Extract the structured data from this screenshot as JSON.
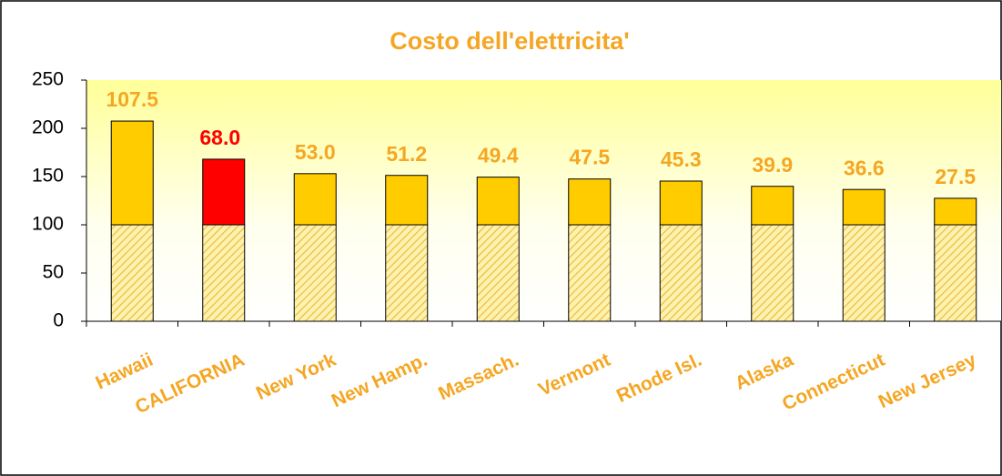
{
  "chart_data": {
    "type": "stacked_bar",
    "title": "Costo dell'elettricita'",
    "categories": [
      "Hawaii",
      "CALIFORNIA",
      "New York",
      "New Hamp.",
      "Massach.",
      "Vermont",
      "Rhode Isl.",
      "Alaska",
      "Connecticut",
      "New Jersey"
    ],
    "series": [
      {
        "color": "#ffe27a",
        "hatch": true,
        "values": [
          100,
          100,
          100,
          100,
          100,
          100,
          100,
          100,
          100,
          100
        ]
      },
      {
        "color": "#ffcc00",
        "colors": [
          "#ffcc00",
          "#ff0000",
          "#ffcc00",
          "#ffcc00",
          "#ffcc00",
          "#ffcc00",
          "#ffcc00",
          "#ffcc00",
          "#ffcc00",
          "#ffcc00"
        ],
        "label_colors": [
          "#f5a623",
          "#ff0000",
          "#f5a623",
          "#f5a623",
          "#f5a623",
          "#f5a623",
          "#f5a623",
          "#f5a623",
          "#f5a623",
          "#f5a623"
        ],
        "values": [
          107.5,
          68,
          53,
          51.2,
          49.4,
          47.5,
          45.3,
          39.9,
          36.6,
          27.5
        ],
        "value_labels": [
          "107.5",
          "68.0",
          "53.0",
          "51.2",
          "49.4",
          "47.5",
          "45.3",
          "39.9",
          "36.6",
          "27.5"
        ]
      }
    ],
    "ylim": [
      0,
      250
    ],
    "yticks": [
      0,
      50,
      100,
      150,
      200,
      250
    ],
    "grid": false
  }
}
